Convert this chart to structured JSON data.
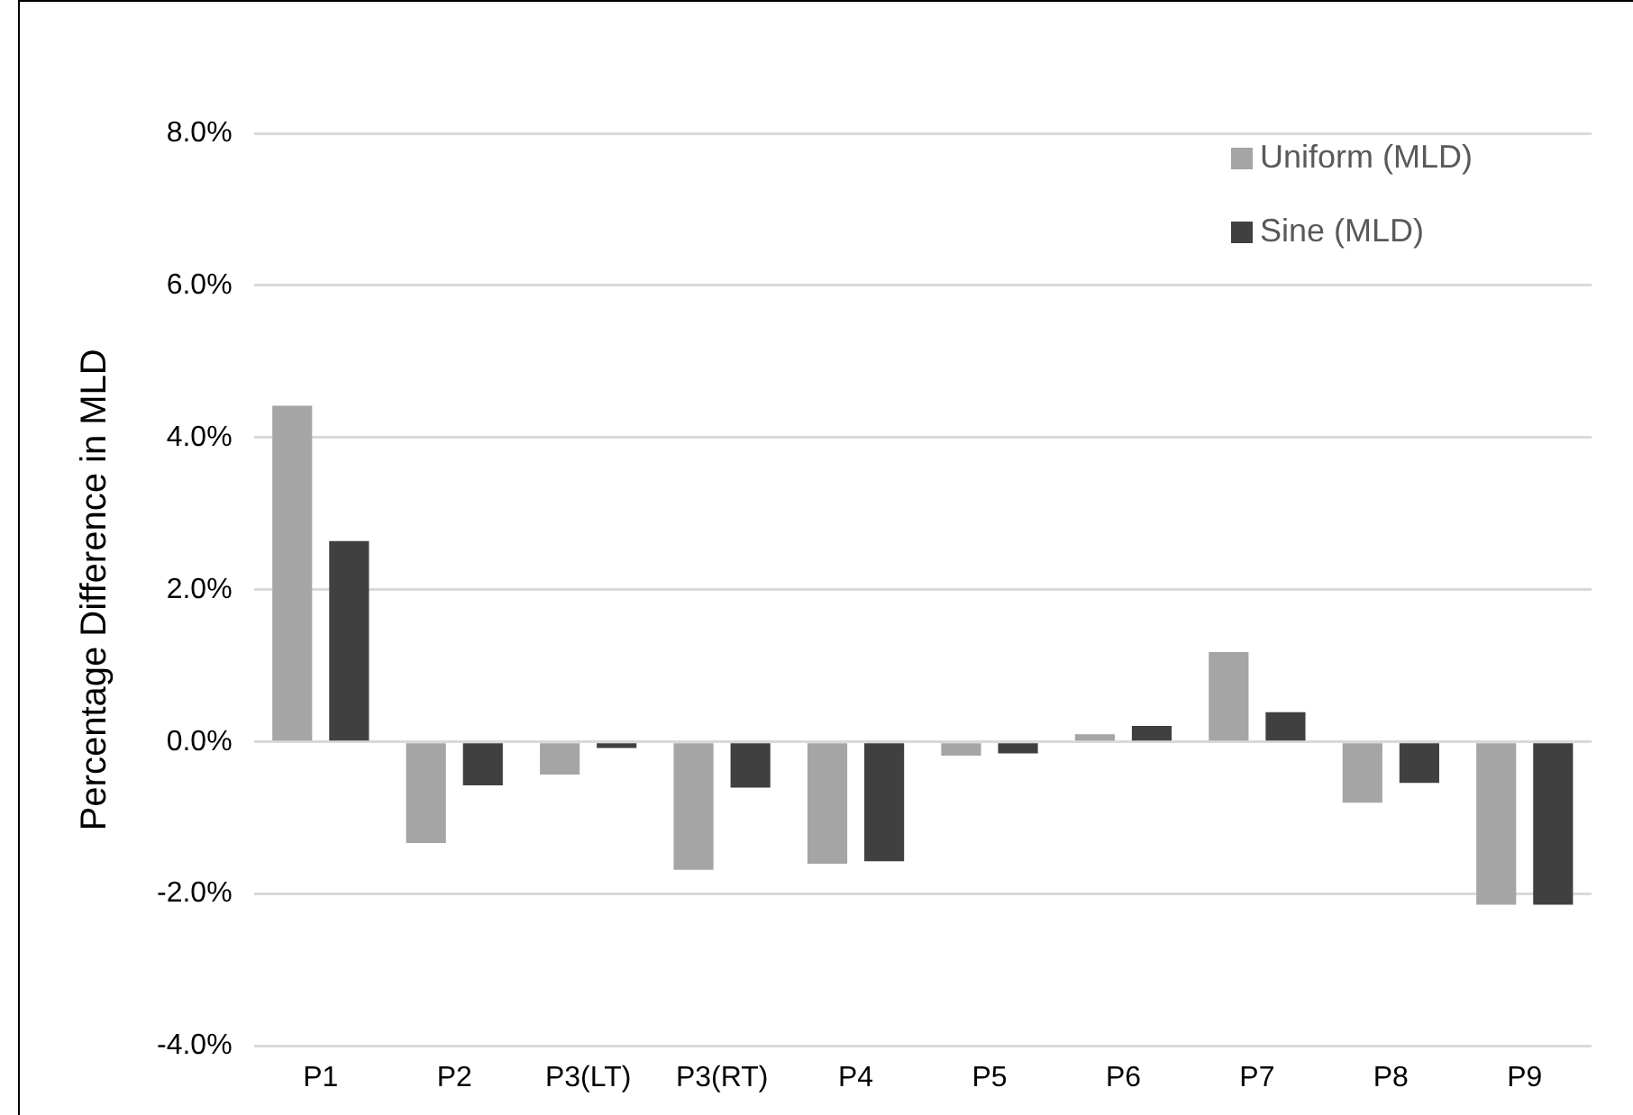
{
  "chart_data": {
    "type": "bar",
    "ylabel": "Percentage Difference in MLD",
    "categories": [
      "P1",
      "P2",
      "P3(LT)",
      "P3(RT)",
      "P4",
      "P5",
      "P6",
      "P7",
      "P8",
      "P9"
    ],
    "series": [
      {
        "name": "Uniform (MLD)",
        "color": "#a5a5a5",
        "values": [
          4.42,
          -1.33,
          -0.43,
          -1.68,
          -1.6,
          -0.18,
          0.1,
          1.18,
          -0.8,
          -2.14
        ]
      },
      {
        "name": "Sine (MLD)",
        "color": "#404040",
        "values": [
          2.64,
          -0.57,
          -0.08,
          -0.6,
          -1.57,
          -0.15,
          0.21,
          0.39,
          -0.54,
          -2.14
        ]
      }
    ],
    "ylim": [
      -4,
      8
    ],
    "yticks": [
      {
        "value": -4,
        "label": "-4.0%"
      },
      {
        "value": -2,
        "label": "-2.0%"
      },
      {
        "value": 0,
        "label": "0.0%"
      },
      {
        "value": 2,
        "label": "2.0%"
      },
      {
        "value": 4,
        "label": "4.0%"
      },
      {
        "value": 6,
        "label": "6.0%"
      },
      {
        "value": 8,
        "label": "8.0%"
      }
    ],
    "grid": "y",
    "legend": "top right"
  }
}
